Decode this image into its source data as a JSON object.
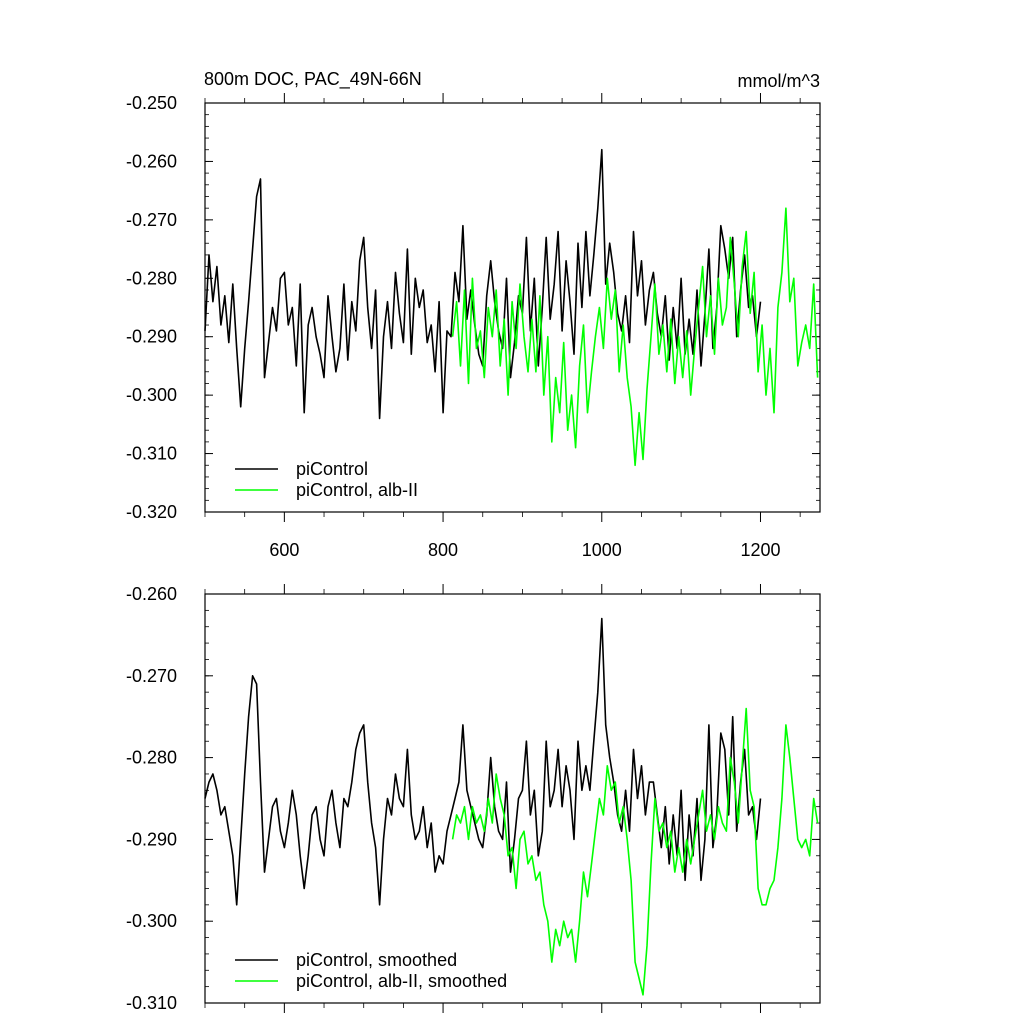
{
  "chart_data": [
    {
      "type": "line",
      "title": "800m DOC, PAC_49N-66N",
      "units_label": "mmol/m^3",
      "xlim": [
        500,
        1275
      ],
      "ylim": [
        -0.32,
        -0.25
      ],
      "xticks": [
        600,
        800,
        1000,
        1200
      ],
      "xtick_labels": [
        "600",
        "800",
        "1000",
        "1200"
      ],
      "yticks": [
        -0.25,
        -0.26,
        -0.27,
        -0.28,
        -0.29,
        -0.3,
        -0.31,
        -0.32
      ],
      "ytick_labels": [
        "-0.250",
        "-0.260",
        "-0.270",
        "-0.280",
        "-0.290",
        "-0.300",
        "-0.310",
        "-0.320"
      ],
      "legend_position": "bottom-left",
      "series": [
        {
          "name": "piControl",
          "color": "#000000",
          "x": [
            500,
            505,
            510,
            515,
            520,
            525,
            530,
            535,
            540,
            545,
            550,
            555,
            560,
            565,
            570,
            575,
            580,
            585,
            590,
            595,
            600,
            605,
            610,
            615,
            620,
            625,
            630,
            635,
            640,
            645,
            650,
            655,
            660,
            665,
            670,
            675,
            680,
            685,
            690,
            695,
            700,
            705,
            710,
            715,
            720,
            725,
            730,
            735,
            740,
            745,
            750,
            755,
            760,
            765,
            770,
            775,
            780,
            785,
            790,
            795,
            800,
            805,
            810,
            815,
            820,
            825,
            830,
            835,
            840,
            845,
            850,
            855,
            860,
            865,
            870,
            875,
            880,
            885,
            890,
            895,
            900,
            905,
            910,
            915,
            920,
            925,
            930,
            935,
            940,
            945,
            950,
            955,
            960,
            965,
            970,
            975,
            980,
            985,
            990,
            995,
            1000,
            1005,
            1010,
            1015,
            1020,
            1025,
            1030,
            1035,
            1040,
            1045,
            1050,
            1055,
            1060,
            1065,
            1070,
            1075,
            1080,
            1085,
            1090,
            1095,
            1100,
            1105,
            1110,
            1115,
            1120,
            1125,
            1130,
            1135,
            1140,
            1145,
            1150,
            1155,
            1160,
            1165,
            1170,
            1175,
            1180,
            1185,
            1190,
            1195,
            1200
          ],
          "y": [
            -0.289,
            -0.276,
            -0.284,
            -0.278,
            -0.288,
            -0.283,
            -0.291,
            -0.281,
            -0.292,
            -0.302,
            -0.292,
            -0.284,
            -0.275,
            -0.266,
            -0.263,
            -0.297,
            -0.291,
            -0.285,
            -0.289,
            -0.28,
            -0.279,
            -0.288,
            -0.285,
            -0.295,
            -0.281,
            -0.303,
            -0.288,
            -0.285,
            -0.29,
            -0.293,
            -0.297,
            -0.283,
            -0.29,
            -0.296,
            -0.292,
            -0.281,
            -0.294,
            -0.284,
            -0.289,
            -0.277,
            -0.273,
            -0.285,
            -0.292,
            -0.282,
            -0.304,
            -0.29,
            -0.284,
            -0.292,
            -0.279,
            -0.286,
            -0.291,
            -0.275,
            -0.293,
            -0.28,
            -0.285,
            -0.282,
            -0.291,
            -0.288,
            -0.296,
            -0.284,
            -0.303,
            -0.289,
            -0.29,
            -0.279,
            -0.284,
            -0.271,
            -0.287,
            -0.282,
            -0.288,
            -0.293,
            -0.295,
            -0.283,
            -0.277,
            -0.284,
            -0.289,
            -0.292,
            -0.28,
            -0.297,
            -0.291,
            -0.283,
            -0.286,
            -0.273,
            -0.289,
            -0.28,
            -0.295,
            -0.285,
            -0.273,
            -0.287,
            -0.281,
            -0.272,
            -0.289,
            -0.277,
            -0.284,
            -0.293,
            -0.274,
            -0.285,
            -0.272,
            -0.283,
            -0.276,
            -0.268,
            -0.258,
            -0.281,
            -0.274,
            -0.279,
            -0.286,
            -0.289,
            -0.283,
            -0.291,
            -0.272,
            -0.283,
            -0.277,
            -0.288,
            -0.282,
            -0.279,
            -0.286,
            -0.29,
            -0.283,
            -0.294,
            -0.285,
            -0.292,
            -0.28,
            -0.293,
            -0.287,
            -0.293,
            -0.282,
            -0.295,
            -0.286,
            -0.275,
            -0.292,
            -0.285,
            -0.271,
            -0.275,
            -0.28,
            -0.273,
            -0.29,
            -0.282,
            -0.276,
            -0.285,
            -0.283,
            -0.29,
            -0.284
          ]
        },
        {
          "name": "piControl, alb-II",
          "color": "#00ff00",
          "x": [
            812,
            817,
            822,
            827,
            832,
            837,
            842,
            847,
            852,
            857,
            862,
            867,
            872,
            877,
            882,
            887,
            892,
            897,
            902,
            907,
            912,
            917,
            922,
            927,
            932,
            937,
            942,
            947,
            952,
            957,
            962,
            967,
            972,
            977,
            982,
            987,
            992,
            997,
            1002,
            1007,
            1012,
            1017,
            1022,
            1027,
            1032,
            1037,
            1042,
            1047,
            1052,
            1057,
            1062,
            1067,
            1072,
            1077,
            1082,
            1087,
            1092,
            1097,
            1102,
            1107,
            1112,
            1117,
            1122,
            1127,
            1132,
            1137,
            1142,
            1147,
            1152,
            1157,
            1162,
            1167,
            1172,
            1177,
            1182,
            1187,
            1192,
            1197,
            1202,
            1207,
            1212,
            1217,
            1222,
            1227,
            1232,
            1237,
            1242,
            1247,
            1252,
            1257,
            1262,
            1267,
            1272
          ],
          "y": [
            -0.29,
            -0.284,
            -0.295,
            -0.282,
            -0.298,
            -0.28,
            -0.292,
            -0.289,
            -0.297,
            -0.285,
            -0.29,
            -0.282,
            -0.295,
            -0.287,
            -0.3,
            -0.284,
            -0.292,
            -0.281,
            -0.29,
            -0.296,
            -0.287,
            -0.296,
            -0.283,
            -0.3,
            -0.29,
            -0.308,
            -0.297,
            -0.303,
            -0.291,
            -0.306,
            -0.3,
            -0.309,
            -0.295,
            -0.288,
            -0.303,
            -0.296,
            -0.29,
            -0.285,
            -0.292,
            -0.28,
            -0.287,
            -0.282,
            -0.296,
            -0.288,
            -0.297,
            -0.302,
            -0.312,
            -0.303,
            -0.311,
            -0.299,
            -0.29,
            -0.281,
            -0.293,
            -0.288,
            -0.296,
            -0.287,
            -0.298,
            -0.29,
            -0.297,
            -0.289,
            -0.3,
            -0.292,
            -0.285,
            -0.278,
            -0.29,
            -0.283,
            -0.293,
            -0.28,
            -0.288,
            -0.285,
            -0.273,
            -0.281,
            -0.29,
            -0.278,
            -0.272,
            -0.286,
            -0.279,
            -0.296,
            -0.288,
            -0.3,
            -0.292,
            -0.303,
            -0.285,
            -0.279,
            -0.268,
            -0.284,
            -0.28,
            -0.295,
            -0.291,
            -0.288,
            -0.292,
            -0.281,
            -0.297
          ]
        }
      ]
    },
    {
      "type": "line",
      "title": "",
      "xlim": [
        500,
        1275
      ],
      "ylim": [
        -0.31,
        -0.26
      ],
      "xticks": [
        600,
        800,
        1000,
        1200
      ],
      "xtick_labels": [],
      "yticks": [
        -0.26,
        -0.27,
        -0.28,
        -0.29,
        -0.3,
        -0.31
      ],
      "ytick_labels": [
        "-0.260",
        "-0.270",
        "-0.280",
        "-0.290",
        "-0.300",
        "-0.310"
      ],
      "legend_position": "bottom-left",
      "series": [
        {
          "name": "piControl, smoothed",
          "color": "#000000",
          "x": [
            500,
            505,
            510,
            515,
            520,
            525,
            530,
            535,
            540,
            545,
            550,
            555,
            560,
            565,
            570,
            575,
            580,
            585,
            590,
            595,
            600,
            605,
            610,
            615,
            620,
            625,
            630,
            635,
            640,
            645,
            650,
            655,
            660,
            665,
            670,
            675,
            680,
            685,
            690,
            695,
            700,
            705,
            710,
            715,
            720,
            725,
            730,
            735,
            740,
            745,
            750,
            755,
            760,
            765,
            770,
            775,
            780,
            785,
            790,
            795,
            800,
            805,
            810,
            815,
            820,
            825,
            830,
            835,
            840,
            845,
            850,
            855,
            860,
            865,
            870,
            875,
            880,
            885,
            890,
            895,
            900,
            905,
            910,
            915,
            920,
            925,
            930,
            935,
            940,
            945,
            950,
            955,
            960,
            965,
            970,
            975,
            980,
            985,
            990,
            995,
            1000,
            1005,
            1010,
            1015,
            1020,
            1025,
            1030,
            1035,
            1040,
            1045,
            1050,
            1055,
            1060,
            1065,
            1070,
            1075,
            1080,
            1085,
            1090,
            1095,
            1100,
            1105,
            1110,
            1115,
            1120,
            1125,
            1130,
            1135,
            1140,
            1145,
            1150,
            1155,
            1160,
            1165,
            1170,
            1175,
            1180,
            1185,
            1190,
            1195,
            1200
          ],
          "y": [
            -0.285,
            -0.283,
            -0.282,
            -0.284,
            -0.287,
            -0.286,
            -0.289,
            -0.292,
            -0.298,
            -0.29,
            -0.282,
            -0.275,
            -0.27,
            -0.271,
            -0.283,
            -0.294,
            -0.29,
            -0.286,
            -0.285,
            -0.289,
            -0.291,
            -0.288,
            -0.284,
            -0.287,
            -0.292,
            -0.296,
            -0.292,
            -0.287,
            -0.286,
            -0.29,
            -0.292,
            -0.286,
            -0.284,
            -0.288,
            -0.291,
            -0.285,
            -0.286,
            -0.283,
            -0.279,
            -0.277,
            -0.276,
            -0.283,
            -0.288,
            -0.291,
            -0.298,
            -0.29,
            -0.285,
            -0.287,
            -0.282,
            -0.285,
            -0.286,
            -0.279,
            -0.287,
            -0.29,
            -0.289,
            -0.286,
            -0.291,
            -0.288,
            -0.294,
            -0.292,
            -0.293,
            -0.289,
            -0.287,
            -0.285,
            -0.283,
            -0.276,
            -0.284,
            -0.286,
            -0.288,
            -0.29,
            -0.291,
            -0.287,
            -0.28,
            -0.286,
            -0.289,
            -0.29,
            -0.283,
            -0.294,
            -0.29,
            -0.285,
            -0.284,
            -0.278,
            -0.287,
            -0.284,
            -0.292,
            -0.289,
            -0.278,
            -0.286,
            -0.284,
            -0.279,
            -0.286,
            -0.281,
            -0.284,
            -0.29,
            -0.278,
            -0.284,
            -0.281,
            -0.284,
            -0.278,
            -0.272,
            -0.263,
            -0.276,
            -0.28,
            -0.283,
            -0.287,
            -0.289,
            -0.284,
            -0.289,
            -0.279,
            -0.285,
            -0.281,
            -0.287,
            -0.283,
            -0.283,
            -0.287,
            -0.291,
            -0.286,
            -0.293,
            -0.287,
            -0.292,
            -0.284,
            -0.295,
            -0.287,
            -0.292,
            -0.285,
            -0.295,
            -0.29,
            -0.276,
            -0.291,
            -0.287,
            -0.277,
            -0.279,
            -0.287,
            -0.275,
            -0.289,
            -0.283,
            -0.279,
            -0.287,
            -0.286,
            -0.29,
            -0.285
          ]
        },
        {
          "name": "piControl, alb-II, smoothed",
          "color": "#00ff00",
          "x": [
            812,
            817,
            822,
            827,
            832,
            837,
            842,
            847,
            852,
            857,
            862,
            867,
            872,
            877,
            882,
            887,
            892,
            897,
            902,
            907,
            912,
            917,
            922,
            927,
            932,
            937,
            942,
            947,
            952,
            957,
            962,
            967,
            972,
            977,
            982,
            987,
            992,
            997,
            1002,
            1007,
            1012,
            1017,
            1022,
            1027,
            1032,
            1037,
            1042,
            1047,
            1052,
            1057,
            1062,
            1067,
            1072,
            1077,
            1082,
            1087,
            1092,
            1097,
            1102,
            1107,
            1112,
            1117,
            1122,
            1127,
            1132,
            1137,
            1142,
            1147,
            1152,
            1157,
            1162,
            1167,
            1172,
            1177,
            1182,
            1187,
            1192,
            1197,
            1202,
            1207,
            1212,
            1217,
            1222,
            1227,
            1232,
            1237,
            1242,
            1247,
            1252,
            1257,
            1262,
            1267,
            1272
          ],
          "y": [
            -0.29,
            -0.287,
            -0.288,
            -0.286,
            -0.29,
            -0.286,
            -0.288,
            -0.287,
            -0.289,
            -0.285,
            -0.288,
            -0.282,
            -0.285,
            -0.287,
            -0.292,
            -0.291,
            -0.296,
            -0.29,
            -0.289,
            -0.293,
            -0.292,
            -0.295,
            -0.294,
            -0.298,
            -0.3,
            -0.305,
            -0.301,
            -0.303,
            -0.3,
            -0.302,
            -0.301,
            -0.305,
            -0.3,
            -0.294,
            -0.297,
            -0.293,
            -0.289,
            -0.285,
            -0.287,
            -0.281,
            -0.284,
            -0.283,
            -0.288,
            -0.286,
            -0.29,
            -0.295,
            -0.305,
            -0.307,
            -0.309,
            -0.303,
            -0.293,
            -0.285,
            -0.289,
            -0.288,
            -0.291,
            -0.289,
            -0.294,
            -0.291,
            -0.294,
            -0.29,
            -0.293,
            -0.29,
            -0.287,
            -0.284,
            -0.289,
            -0.287,
            -0.29,
            -0.286,
            -0.288,
            -0.289,
            -0.28,
            -0.283,
            -0.288,
            -0.281,
            -0.274,
            -0.284,
            -0.286,
            -0.296,
            -0.298,
            -0.298,
            -0.296,
            -0.295,
            -0.291,
            -0.285,
            -0.276,
            -0.28,
            -0.285,
            -0.29,
            -0.291,
            -0.29,
            -0.292,
            -0.285,
            -0.288
          ]
        }
      ]
    }
  ]
}
